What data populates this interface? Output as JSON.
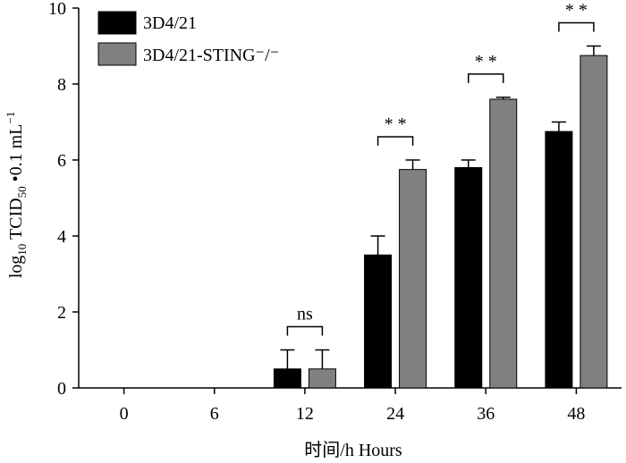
{
  "colors": {
    "series_1": "#000000",
    "series_2": "#808080",
    "axis": "#000000"
  },
  "chart_data": {
    "type": "bar",
    "xlabel": "时间/h Hours",
    "ylabel": {
      "prefix": "log",
      "prefix_sub": "10",
      "middle": " TCID",
      "middle_sub": "50",
      "suffix": " •0.1 mL",
      "suffix_sup": "−1"
    },
    "ylim": [
      0,
      10
    ],
    "yticks": [
      0,
      2,
      4,
      6,
      8,
      10
    ],
    "categories": [
      "0",
      "6",
      "12",
      "24",
      "36",
      "48"
    ],
    "series": [
      {
        "name": "3D4/21",
        "values": [
          0,
          0,
          0.5,
          3.5,
          5.8,
          6.75
        ],
        "errors": [
          0,
          0,
          0.5,
          0.5,
          0.2,
          0.25
        ]
      },
      {
        "name": "3D4/21-STING⁻/⁻",
        "values": [
          0,
          0,
          0.5,
          5.75,
          7.6,
          8.75
        ],
        "errors": [
          0,
          0,
          0.5,
          0.25,
          0.05,
          0.25
        ]
      }
    ],
    "significance": [
      {
        "category": "12",
        "label": "ns"
      },
      {
        "category": "24",
        "label": "* *"
      },
      {
        "category": "36",
        "label": "* *"
      },
      {
        "category": "48",
        "label": "* *"
      }
    ],
    "legend_position": "top-left",
    "grid": false
  }
}
